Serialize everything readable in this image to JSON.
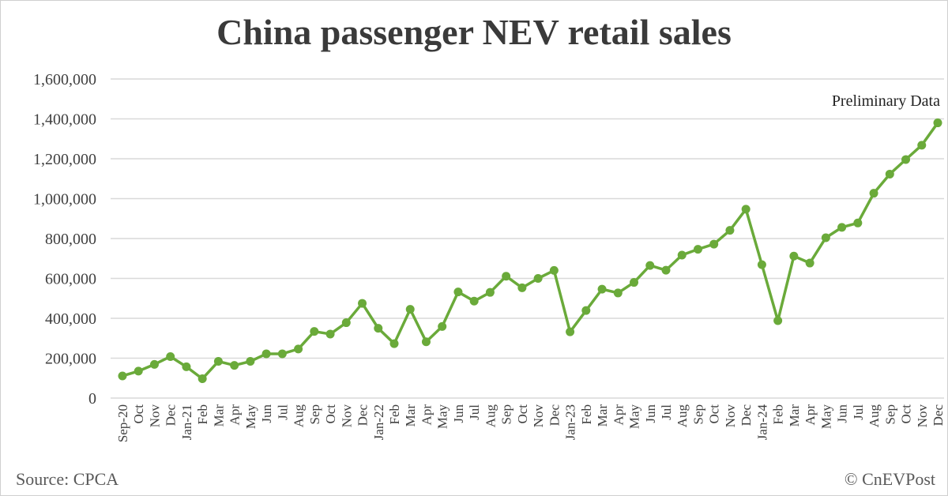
{
  "chart_data": {
    "type": "line",
    "title": "China passenger NEV retail sales",
    "xlabel": "",
    "ylabel": "",
    "ylim": [
      0,
      1600000
    ],
    "yticks": [
      "0",
      "200,000",
      "400,000",
      "600,000",
      "800,000",
      "1,000,000",
      "1,200,000",
      "1,400,000",
      "1,600,000"
    ],
    "grid": true,
    "legend": "none",
    "color": "#6aaa3a",
    "categories": [
      "Sep-20",
      "Oct",
      "Nov",
      "Dec",
      "Jan-21",
      "Feb",
      "Mar",
      "Apr",
      "May",
      "Jun",
      "Jul",
      "Aug",
      "Sep",
      "Oct",
      "Nov",
      "Dec",
      "Jan-22",
      "Feb",
      "Mar",
      "Apr",
      "May",
      "Jun",
      "Jul",
      "Aug",
      "Sep",
      "Oct",
      "Nov",
      "Dec",
      "Jan-23",
      "Feb",
      "Mar",
      "Apr",
      "May",
      "Jun",
      "Jul",
      "Aug",
      "Sep",
      "Oct",
      "Nov",
      "Dec",
      "Jan-24",
      "Feb",
      "Mar",
      "Apr",
      "May",
      "Jun",
      "Jul",
      "Aug",
      "Sep",
      "Oct",
      "Nov",
      "Dec"
    ],
    "values": [
      111000,
      135000,
      169000,
      208000,
      157000,
      97000,
      184000,
      164000,
      184000,
      222000,
      222000,
      246000,
      334000,
      321000,
      378000,
      475000,
      350000,
      273000,
      445000,
      282000,
      359000,
      532000,
      486000,
      530000,
      611000,
      553000,
      600000,
      640000,
      332000,
      439000,
      546000,
      527000,
      580000,
      665000,
      641000,
      717000,
      746000,
      772000,
      841000,
      947000,
      669000,
      388000,
      712000,
      677000,
      804000,
      856000,
      878000,
      1027000,
      1123000,
      1196000,
      1268000,
      1380000
    ],
    "annotation": "Preliminary Data"
  },
  "footer": {
    "source": "Source: CPCA",
    "credit": "© CnEVPost"
  }
}
